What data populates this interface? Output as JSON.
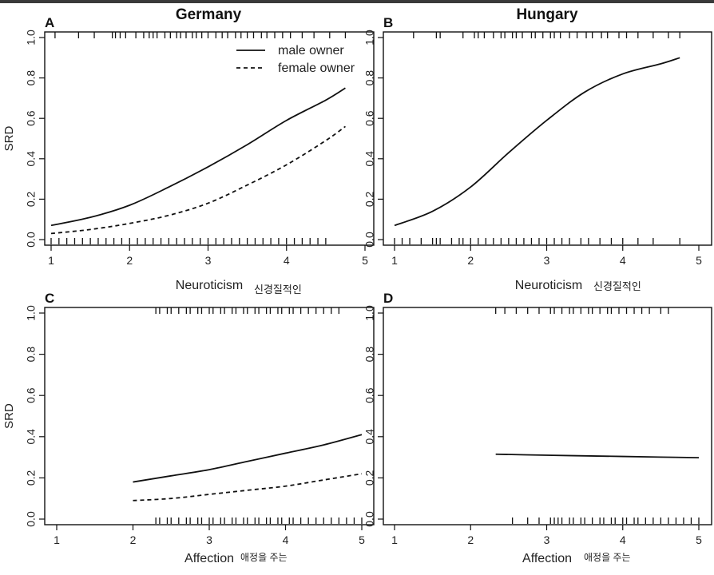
{
  "figure": {
    "titles": {
      "left": "Germany",
      "right": "Hungary"
    },
    "ylabel": "SRD",
    "xlabels": {
      "A": "Neuroticism",
      "B": "Neuroticism",
      "C": "Affection",
      "D": "Affection"
    },
    "annotations": {
      "A": "신경질적인",
      "B": "신경질적인",
      "C": "애정을 주는",
      "D": "애정을 주는"
    },
    "legend": {
      "male": "male owner",
      "female": "female owner"
    },
    "x_ticks": [
      "1",
      "2",
      "3",
      "4",
      "5"
    ],
    "y_ticks": [
      "0.0",
      "0.2",
      "0.4",
      "0.6",
      "0.8",
      "1.0"
    ]
  },
  "chart_data": [
    {
      "panel": "A",
      "type": "line",
      "title": "Germany",
      "xlabel": "Neuroticism",
      "ylabel": "SRD",
      "xlim": [
        1,
        5
      ],
      "ylim": [
        0,
        1
      ],
      "legend": "top-right",
      "series": [
        {
          "name": "male owner",
          "style": "solid",
          "x": [
            1,
            1.5,
            2,
            2.5,
            3,
            3.5,
            4,
            4.5,
            4.75
          ],
          "y": [
            0.07,
            0.11,
            0.17,
            0.26,
            0.36,
            0.47,
            0.59,
            0.69,
            0.75
          ]
        },
        {
          "name": "female owner",
          "style": "dashed",
          "x": [
            1,
            1.5,
            2,
            2.5,
            3,
            3.5,
            4,
            4.5,
            4.75
          ],
          "y": [
            0.03,
            0.05,
            0.08,
            0.12,
            0.18,
            0.27,
            0.37,
            0.49,
            0.56
          ]
        }
      ],
      "rug_top": [
        1.05,
        1.35,
        1.55,
        1.78,
        1.82,
        1.88,
        1.95,
        2.08,
        2.18,
        2.25,
        2.3,
        2.35,
        2.45,
        2.52,
        2.6,
        2.65,
        2.72,
        2.8,
        2.85,
        2.92,
        3.0,
        3.1,
        3.18,
        3.25,
        3.35,
        3.42,
        3.5,
        3.58,
        3.68,
        3.75,
        3.85,
        3.95,
        4.05,
        4.2,
        4.35,
        4.55,
        4.75
      ],
      "rug_bottom": [
        1.0,
        1.1,
        1.2,
        1.3,
        1.4,
        1.5,
        1.6,
        1.7,
        1.8,
        1.9,
        2.0,
        2.1,
        2.2,
        2.3,
        2.4,
        2.5,
        2.6,
        2.7,
        2.8,
        2.9,
        3.0,
        3.1,
        3.2,
        3.3,
        3.4,
        3.5,
        3.6,
        3.7,
        3.8,
        3.9,
        4.0,
        4.1,
        4.2,
        4.3,
        4.4,
        4.5
      ]
    },
    {
      "panel": "B",
      "type": "line",
      "title": "Hungary",
      "xlabel": "Neuroticism",
      "ylabel": "SRD",
      "xlim": [
        1,
        5
      ],
      "ylim": [
        0,
        1
      ],
      "series": [
        {
          "name": "male owner",
          "style": "solid",
          "x": [
            1,
            1.5,
            2,
            2.5,
            3,
            3.5,
            4,
            4.5,
            4.75
          ],
          "y": [
            0.07,
            0.14,
            0.26,
            0.43,
            0.59,
            0.73,
            0.82,
            0.87,
            0.9
          ]
        }
      ],
      "rug_top": [
        1.25,
        1.55,
        1.6,
        1.9,
        2.05,
        2.1,
        2.18,
        2.3,
        2.4,
        2.45,
        2.55,
        2.6,
        2.68,
        2.8,
        2.85,
        2.95,
        3.05,
        3.1,
        3.18,
        3.3,
        3.4,
        3.52,
        3.6,
        3.72,
        3.8,
        3.95,
        4.05,
        4.2,
        4.4,
        4.6,
        4.75
      ],
      "rug_bottom": [
        1.0,
        1.1,
        1.2,
        1.35,
        1.5,
        1.55,
        1.6,
        1.75,
        1.85,
        1.9,
        2.0,
        2.1,
        2.2,
        2.3,
        2.4,
        2.5,
        2.6,
        2.7,
        2.8,
        2.9,
        3.0,
        3.1,
        3.2,
        3.3,
        3.45,
        3.55,
        3.7,
        3.85,
        4.0,
        4.2,
        4.4,
        4.75
      ]
    },
    {
      "panel": "C",
      "type": "line",
      "xlabel": "Affection",
      "ylabel": "SRD",
      "xlim": [
        1,
        5
      ],
      "ylim": [
        0,
        1
      ],
      "series": [
        {
          "name": "male owner",
          "style": "solid",
          "x": [
            2,
            2.5,
            3,
            3.5,
            4,
            4.5,
            5
          ],
          "y": [
            0.18,
            0.21,
            0.24,
            0.28,
            0.32,
            0.36,
            0.41
          ]
        },
        {
          "name": "female owner",
          "style": "dashed",
          "x": [
            2,
            2.5,
            3,
            3.5,
            4,
            4.5,
            5
          ],
          "y": [
            0.09,
            0.1,
            0.12,
            0.14,
            0.16,
            0.19,
            0.22
          ]
        }
      ],
      "rug_top": [
        2.3,
        2.35,
        2.45,
        2.5,
        2.6,
        2.7,
        2.75,
        2.85,
        2.9,
        3.0,
        3.05,
        3.15,
        3.2,
        3.3,
        3.35,
        3.45,
        3.5,
        3.6,
        3.65,
        3.75,
        3.8,
        3.9,
        3.95,
        4.05,
        4.1,
        4.2,
        4.3,
        4.4,
        4.5,
        4.6,
        4.7
      ],
      "rug_bottom": [
        2.3,
        2.35,
        2.45,
        2.5,
        2.6,
        2.7,
        2.75,
        2.85,
        2.9,
        3.0,
        3.05,
        3.15,
        3.2,
        3.3,
        3.35,
        3.45,
        3.5,
        3.6,
        3.65,
        3.75,
        3.8,
        3.9,
        3.95,
        4.05,
        4.1,
        4.2,
        4.3,
        4.4,
        4.5,
        4.6,
        4.7,
        4.8,
        4.9,
        5.0
      ]
    },
    {
      "panel": "D",
      "type": "line",
      "xlabel": "Affection",
      "ylabel": "SRD",
      "xlim": [
        1,
        5
      ],
      "ylim": [
        0,
        1
      ],
      "series": [
        {
          "name": "male owner",
          "style": "solid",
          "x": [
            2.33,
            3,
            3.5,
            4,
            4.5,
            5
          ],
          "y": [
            0.315,
            0.31,
            0.307,
            0.304,
            0.301,
            0.298
          ]
        }
      ],
      "rug_top": [
        2.33,
        2.45,
        2.6,
        2.75,
        2.9,
        3.05,
        3.1,
        3.2,
        3.3,
        3.35,
        3.45,
        3.55,
        3.6,
        3.7,
        3.8,
        3.85,
        3.95,
        4.05,
        4.15,
        4.25,
        4.35,
        4.5,
        4.6
      ],
      "rug_bottom": [
        2.55,
        2.75,
        2.9,
        3.05,
        3.1,
        3.15,
        3.2,
        3.3,
        3.35,
        3.45,
        3.5,
        3.6,
        3.7,
        3.75,
        3.85,
        3.9,
        4.0,
        4.05,
        4.15,
        4.2,
        4.3,
        4.4,
        4.5,
        4.6,
        4.7,
        4.8,
        4.9,
        5.0
      ]
    }
  ]
}
